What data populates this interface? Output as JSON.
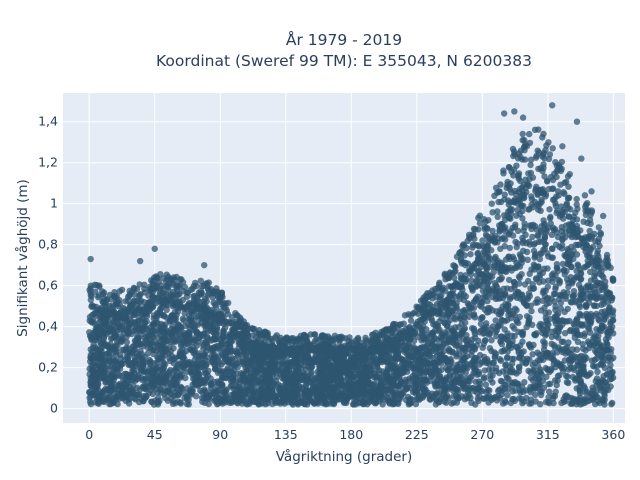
{
  "chart_data": {
    "type": "scatter",
    "title_line1": "År 1979 - 2019",
    "title_line2": "Koordinat (Sweref 99 TM): E 355043, N 6200383",
    "xlabel": "Vågriktning (grader)",
    "ylabel": "Signifikant våghöjd (m)",
    "xlim": [
      -18,
      368
    ],
    "ylim": [
      -0.07,
      1.54
    ],
    "x_ticks": [
      0,
      45,
      90,
      135,
      180,
      225,
      270,
      315,
      360
    ],
    "x_tick_labels": [
      "0",
      "45",
      "90",
      "135",
      "180",
      "225",
      "270",
      "315",
      "360"
    ],
    "y_ticks": [
      0,
      0.2,
      0.4,
      0.6,
      0.8,
      1.0,
      1.2,
      1.4
    ],
    "y_tick_labels": [
      "0",
      "0,2",
      "0,4",
      "0,6",
      "0,8",
      "1",
      "1,2",
      "1,4"
    ],
    "grid": true,
    "marker_color": "#2f5570",
    "plot_bg": "#e5ecf6",
    "envelope": {
      "direction": [
        0,
        10,
        20,
        30,
        40,
        50,
        60,
        70,
        80,
        90,
        100,
        110,
        120,
        130,
        140,
        150,
        160,
        170,
        180,
        190,
        200,
        210,
        220,
        230,
        240,
        250,
        260,
        270,
        280,
        290,
        300,
        310,
        320,
        330,
        340,
        350,
        360
      ],
      "max_height": [
        0.6,
        0.56,
        0.55,
        0.56,
        0.6,
        0.63,
        0.62,
        0.6,
        0.6,
        0.55,
        0.45,
        0.38,
        0.36,
        0.34,
        0.34,
        0.35,
        0.35,
        0.34,
        0.33,
        0.34,
        0.36,
        0.4,
        0.45,
        0.52,
        0.6,
        0.68,
        0.8,
        0.92,
        1.05,
        1.2,
        1.3,
        1.3,
        1.2,
        1.1,
        1.0,
        0.85,
        0.62
      ]
    },
    "outliers": [
      {
        "x": 1,
        "y": 0.73
      },
      {
        "x": 45,
        "y": 0.78
      },
      {
        "x": 35,
        "y": 0.72
      },
      {
        "x": 79,
        "y": 0.7
      },
      {
        "x": 285,
        "y": 1.44
      },
      {
        "x": 292,
        "y": 1.45
      },
      {
        "x": 298,
        "y": 1.42
      },
      {
        "x": 318,
        "y": 1.48
      },
      {
        "x": 335,
        "y": 1.4
      },
      {
        "x": 312,
        "y": 1.34
      },
      {
        "x": 325,
        "y": 1.28
      },
      {
        "x": 338,
        "y": 1.22
      },
      {
        "x": 345,
        "y": 1.06
      },
      {
        "x": 353,
        "y": 0.94
      }
    ]
  }
}
